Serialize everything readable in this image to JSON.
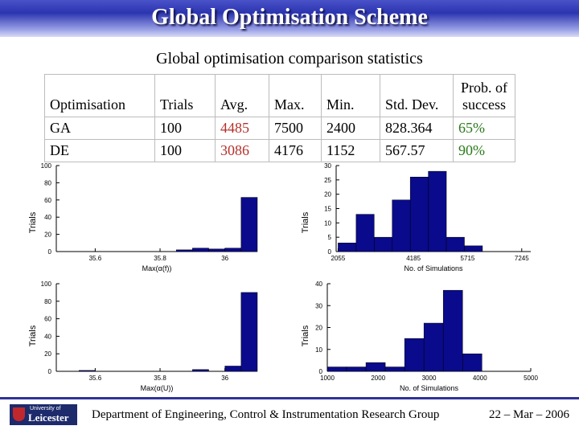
{
  "header": {
    "title": "Global Optimisation Scheme"
  },
  "subtitle": "Global optimisation comparison statistics",
  "table": {
    "columns": [
      "Optimisation",
      "Trials",
      "Avg.",
      "Max.",
      "Min.",
      "Std. Dev.",
      "Prob. of",
      "success"
    ],
    "rows": [
      [
        "GA",
        "100",
        "4485",
        "7500",
        "2400",
        "828.364",
        "65%"
      ],
      [
        "DE",
        "100",
        "3086",
        "4176",
        "1152",
        "567.57",
        "90%"
      ]
    ]
  },
  "colors": {
    "bar": "#0a0a8c",
    "title_bar": "#2b35b0",
    "avg_text": "#b3312a",
    "prob_text": "#2a7a1a"
  },
  "chart_data": [
    {
      "type": "bar",
      "xlabel": "Max(α(f))",
      "ylabel": "Trials",
      "xlim": [
        35.48,
        36.1
      ],
      "ylim": [
        0,
        100
      ],
      "xticks": [
        "35.6",
        "35.8",
        "36"
      ],
      "xtick_values": [
        35.6,
        35.8,
        36.0
      ],
      "yticks": [
        "0",
        "20",
        "40",
        "60",
        "80",
        "100"
      ],
      "bin_width": 0.05,
      "x": [
        35.875,
        35.925,
        35.975,
        36.025,
        36.075
      ],
      "values": [
        2,
        4,
        3,
        4,
        63
      ]
    },
    {
      "type": "bar",
      "xlabel": "No. of Simulations",
      "ylabel": "Trials",
      "xlim": [
        2000,
        7500
      ],
      "ylim": [
        0,
        30
      ],
      "xticks": [
        "2055",
        "4185",
        "5715",
        "7245"
      ],
      "xtick_values": [
        2055,
        4185,
        5715,
        7245
      ],
      "yticks": [
        "0",
        "5",
        "10",
        "15",
        "20",
        "25",
        "30"
      ],
      "bin_width": 510,
      "x": [
        2310,
        2820,
        3330,
        3840,
        4350,
        4860,
        5370,
        5880
      ],
      "values": [
        3,
        13,
        5,
        18,
        26,
        28,
        5,
        2
      ]
    },
    {
      "type": "bar",
      "xlabel": "Max(α(U))",
      "ylabel": "Trials",
      "xlim": [
        35.48,
        36.1
      ],
      "ylim": [
        0,
        100
      ],
      "xticks": [
        "35.6",
        "35.8",
        "36"
      ],
      "xtick_values": [
        35.6,
        35.8,
        36.0
      ],
      "yticks": [
        "0",
        "20",
        "40",
        "60",
        "80",
        "100"
      ],
      "bin_width": 0.05,
      "x": [
        35.575,
        35.925,
        36.025,
        36.075
      ],
      "values": [
        1,
        2,
        6,
        90
      ]
    },
    {
      "type": "bar",
      "xlabel": "No. of Simulations",
      "ylabel": "Trials",
      "xlim": [
        1000,
        5000
      ],
      "ylim": [
        0,
        40
      ],
      "xticks": [
        "1000",
        "2000",
        "3000",
        "4000",
        "5000"
      ],
      "xtick_values": [
        1000,
        2000,
        3000,
        4000,
        5000
      ],
      "yticks": [
        "0",
        "10",
        "20",
        "30",
        "40"
      ],
      "bin_width": 380,
      "x": [
        1190,
        1570,
        1950,
        2330,
        2710,
        3090,
        3470,
        3850
      ],
      "values": [
        2,
        2,
        4,
        2,
        15,
        22,
        37,
        8
      ]
    }
  ],
  "footer": {
    "logo_top": "University of",
    "logo_main": "Leicester",
    "department": "Department of Engineering, Control & Instrumentation Research Group",
    "date": "22 – Mar – 2006"
  }
}
